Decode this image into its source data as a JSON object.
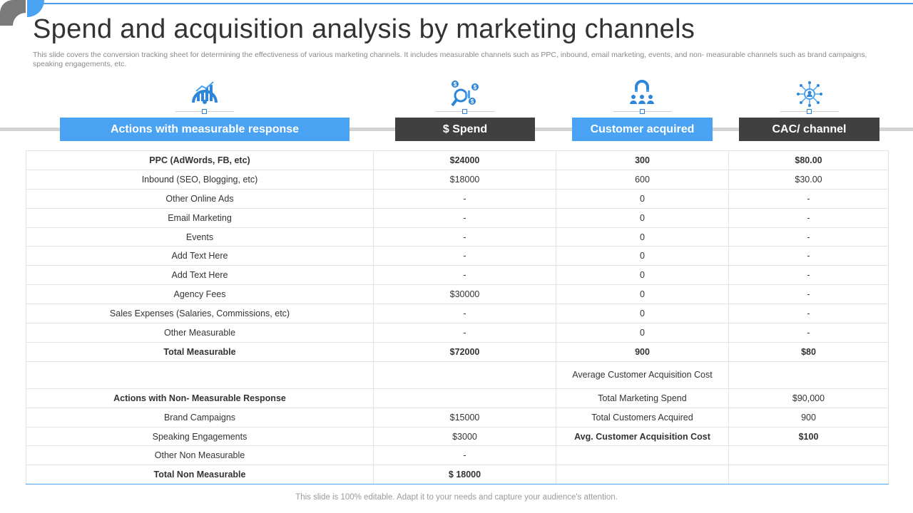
{
  "title": "Spend and acquisition analysis by marketing channels",
  "subtitle": "This slide covers the conversion tracking sheet for determining the effectiveness of various marketing channels. It includes measurable channels such as PPC, inbound, email marketing, events, and non- measurable channels such as brand campaigns, speaking engagements, etc.",
  "columns": [
    {
      "label": "Actions with measurable response",
      "icon": "gauge-chart-icon",
      "style": "blue"
    },
    {
      "label": "$ Spend",
      "icon": "dollar-analysis-icon",
      "style": "dark"
    },
    {
      "label": "Customer acquired",
      "icon": "customer-magnet-icon",
      "style": "blue"
    },
    {
      "label": "CAC/ channel",
      "icon": "network-hub-icon",
      "style": "dark"
    }
  ],
  "rows": [
    {
      "c": [
        "PPC (AdWords, FB, etc)",
        "$24000",
        "300",
        "$80.00"
      ],
      "bold": true
    },
    {
      "c": [
        "Inbound (SEO, Blogging, etc)",
        "$18000",
        "600",
        "$30.00"
      ]
    },
    {
      "c": [
        "Other Online Ads",
        "-",
        "0",
        "-"
      ]
    },
    {
      "c": [
        "Email Marketing",
        "-",
        "0",
        "-"
      ]
    },
    {
      "c": [
        "Events",
        "-",
        "0",
        "-"
      ]
    },
    {
      "c": [
        "Add Text Here",
        "-",
        "0",
        "-"
      ]
    },
    {
      "c": [
        "Add Text Here",
        "-",
        "0",
        "-"
      ]
    },
    {
      "c": [
        "Agency Fees",
        "$30000",
        "0",
        "-"
      ]
    },
    {
      "c": [
        "Sales Expenses (Salaries, Commissions, etc)",
        "-",
        "0",
        "-"
      ]
    },
    {
      "c": [
        "Other Measurable",
        "-",
        "0",
        "-"
      ]
    },
    {
      "c": [
        "Total Measurable",
        "$72000",
        "900",
        "$80"
      ],
      "bold": true
    },
    {
      "c": [
        "",
        "",
        "Average Customer Acquisition Cost",
        ""
      ],
      "tall": true
    },
    {
      "c": [
        "Actions with Non- Measurable Response",
        "",
        "Total Marketing Spend",
        "$90,000"
      ],
      "boldCols": [
        0
      ]
    },
    {
      "c": [
        "Brand Campaigns",
        "$15000",
        "Total Customers Acquired",
        "900"
      ]
    },
    {
      "c": [
        "Speaking Engagements",
        "$3000",
        "Avg. Customer Acquisition Cost",
        "$100"
      ],
      "boldCols": [
        2,
        3
      ]
    },
    {
      "c": [
        "Other Non Measurable",
        "-",
        "",
        ""
      ]
    },
    {
      "c": [
        "Total Non Measurable",
        "$ 18000",
        "",
        ""
      ],
      "boldCols": [
        0,
        1
      ]
    }
  ],
  "footer": "This slide is 100% editable. Adapt it to your needs and capture your audience's attention.",
  "colors": {
    "accent": "#4aa2f2",
    "dark": "#404040",
    "iconBlue": "#2d86d8"
  }
}
